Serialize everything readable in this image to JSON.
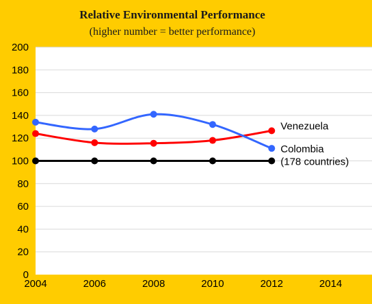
{
  "chart_data": {
    "type": "line",
    "title": "Relative Environmental Performance",
    "subtitle": "(higher  number = better performance)",
    "xlabel": "",
    "ylabel": "",
    "x_ticks": [
      2004,
      2006,
      2008,
      2010,
      2012,
      2014
    ],
    "y_ticks": [
      0,
      20,
      40,
      60,
      80,
      100,
      120,
      140,
      160,
      180,
      200
    ],
    "xlim": [
      2004,
      2015.4
    ],
    "ylim": [
      0,
      200
    ],
    "grid": true,
    "series": [
      {
        "label": "Venezuela",
        "color": "#ff0000",
        "x": [
          2004,
          2006,
          2008,
          2010,
          2012
        ],
        "values": [
          124,
          116,
          115.5,
          118,
          126.5
        ]
      },
      {
        "label": "Colombia",
        "color": "#3366ff",
        "x": [
          2004,
          2006,
          2008,
          2010,
          2012
        ],
        "values": [
          134,
          128,
          141,
          132,
          111
        ]
      },
      {
        "label": "(178 countries)",
        "color": "#000000",
        "x": [
          2004,
          2006,
          2008,
          2010,
          2012
        ],
        "values": [
          100,
          100,
          100,
          100,
          100
        ]
      }
    ]
  }
}
